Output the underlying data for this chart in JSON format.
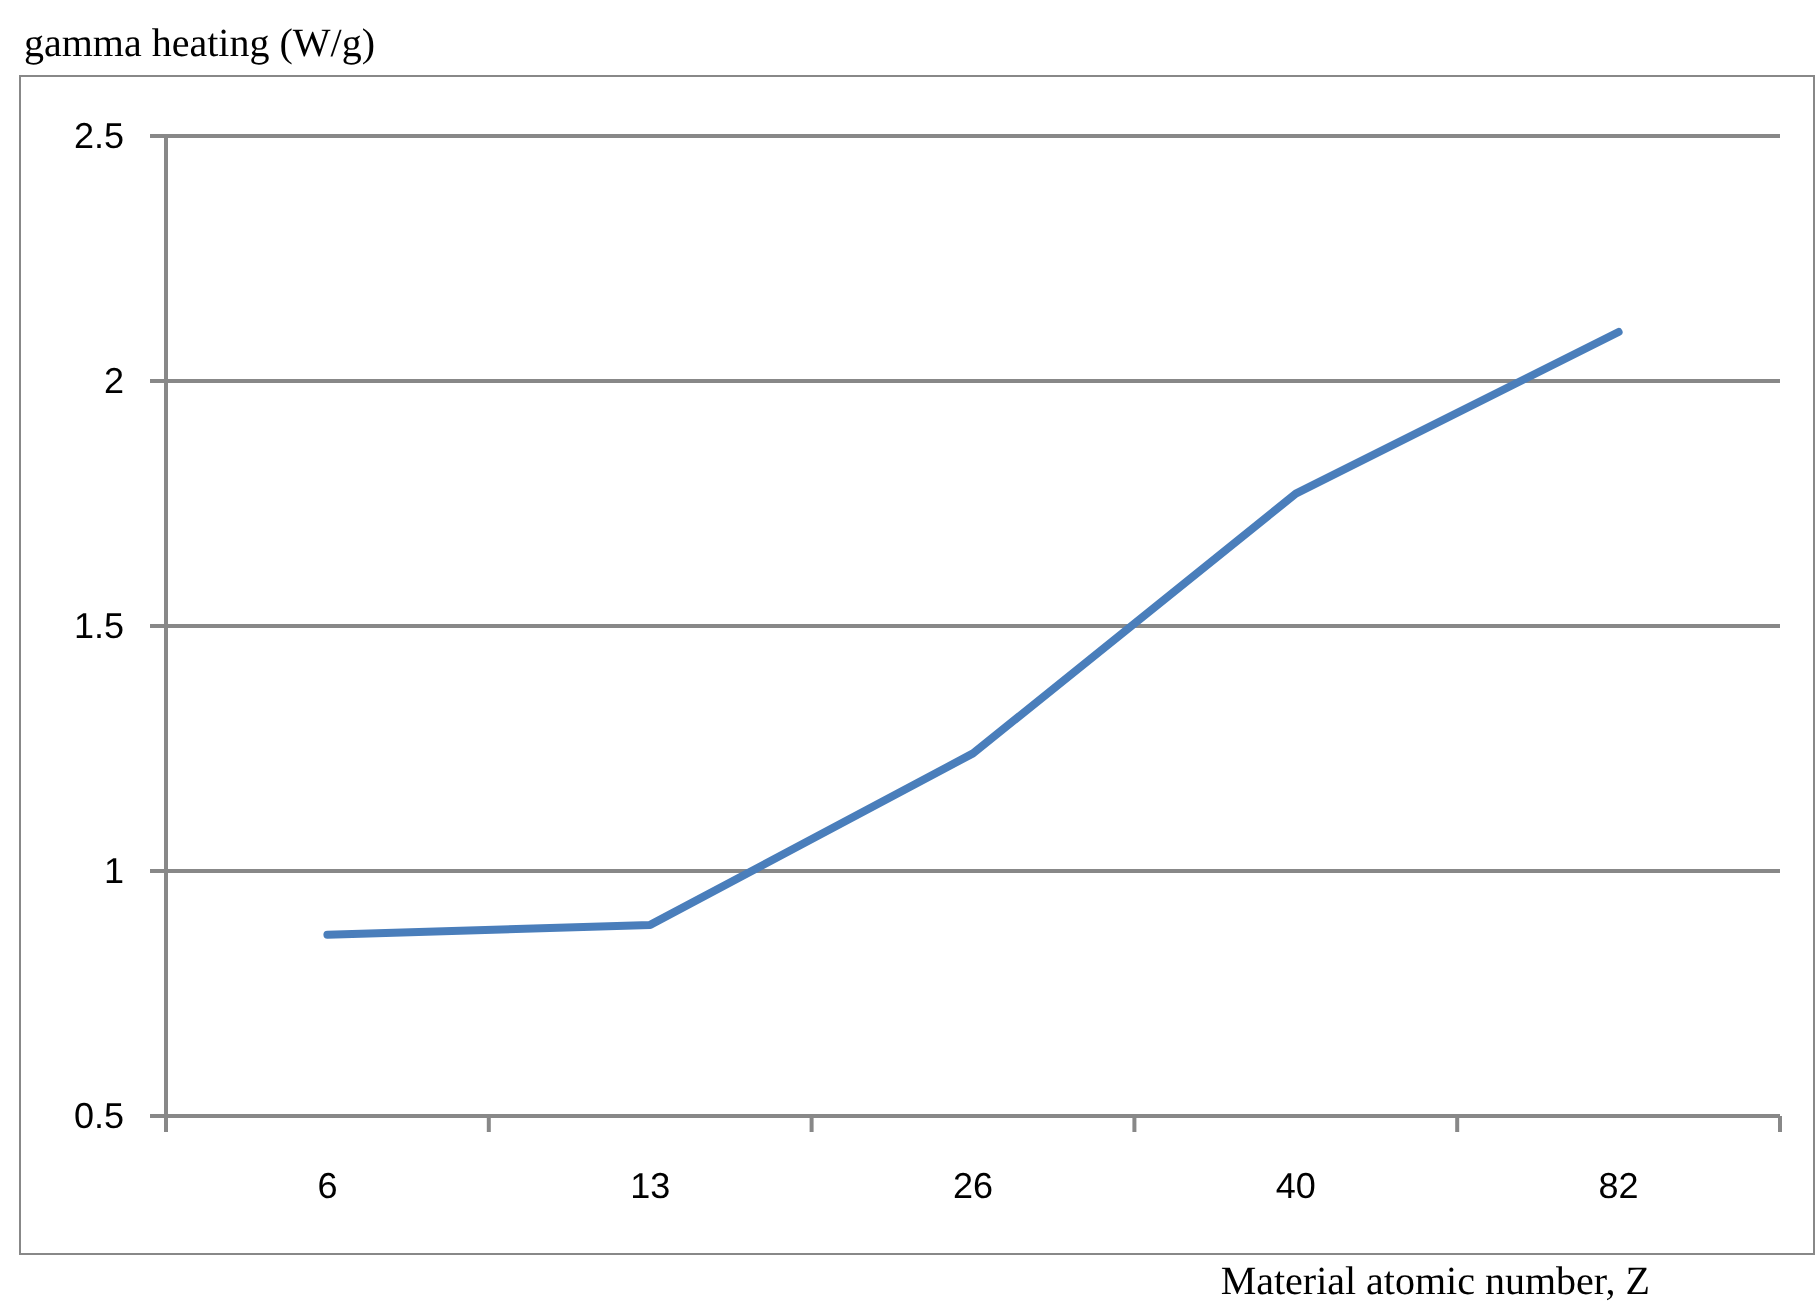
{
  "chart_data": {
    "type": "line",
    "xlabel": "Material atomic number, Z",
    "ylabel": "gamma heating (W/g)",
    "categories": [
      "6",
      "13",
      "26",
      "40",
      "82"
    ],
    "series": [
      {
        "color": "#4a7ebb",
        "values": [
          0.87,
          0.89,
          1.24,
          1.77,
          2.1
        ]
      }
    ],
    "ylim": [
      0.5,
      2.5
    ],
    "yticks": [
      0.5,
      1,
      1.5,
      2,
      2.5
    ],
    "grid": "y",
    "marker": "none",
    "line_style": "solid"
  }
}
